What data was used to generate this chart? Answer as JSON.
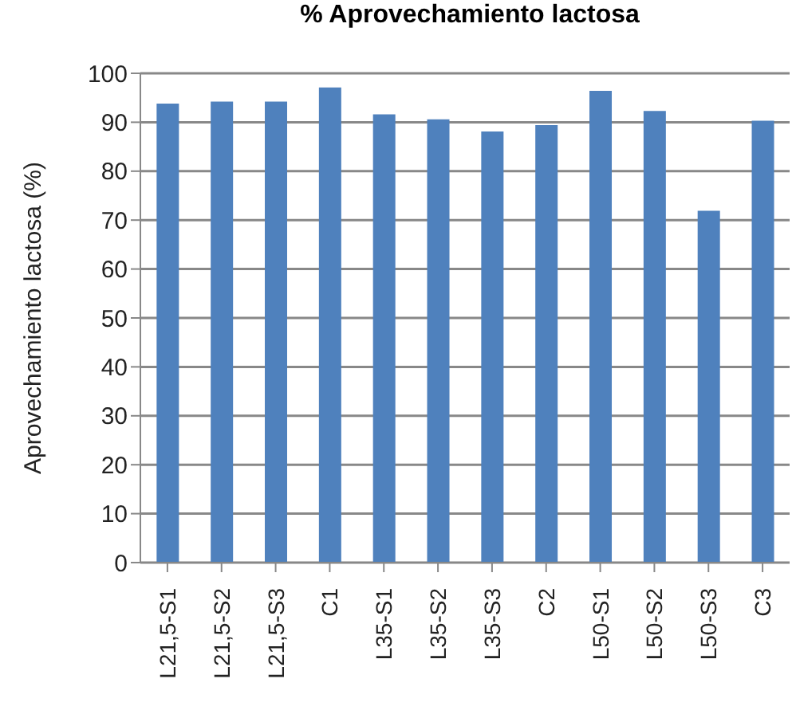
{
  "chart_data": {
    "type": "bar",
    "title": "% Aprovechamiento lactosa",
    "ylabel": "Aprovechamiento lactosa (%)",
    "categories": [
      "L21,5-S1",
      "L21,5-S2",
      "L21,5-S3",
      "C1",
      "L35-S1",
      "L35-S2",
      "L35-S3",
      "C2",
      "L50-S1",
      "L50-S2",
      "L50-S3",
      "C3"
    ],
    "values": [
      93.8,
      94.2,
      94.2,
      97.1,
      91.6,
      90.6,
      88.1,
      89.4,
      96.4,
      92.3,
      71.9,
      90.3
    ],
    "color": "#4f81bd",
    "ylim": [
      0,
      100
    ],
    "yticks": [
      0,
      10,
      20,
      30,
      40,
      50,
      60,
      70,
      80,
      90,
      100
    ],
    "grid": "y",
    "legend": false
  }
}
